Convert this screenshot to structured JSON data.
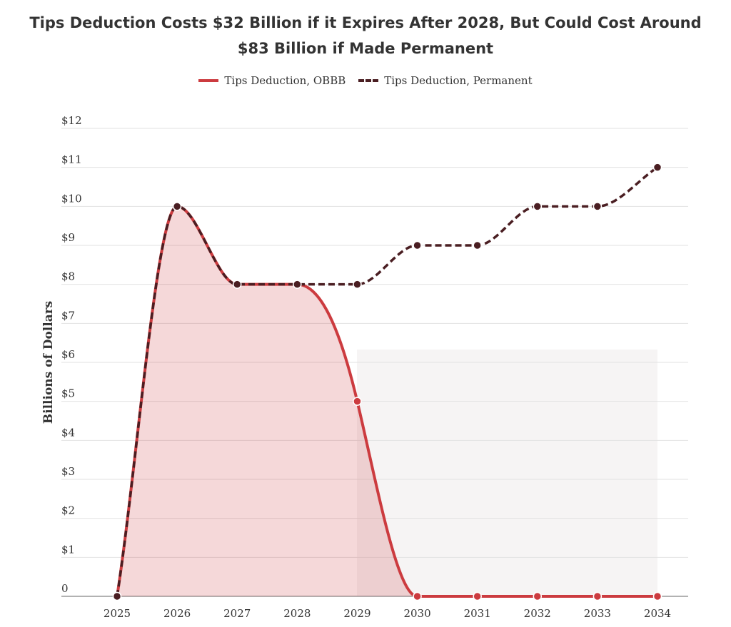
{
  "chart_data": {
    "type": "line",
    "title": "Tips Deduction Costs $32 Billion if it Expires After 2028, But Could Cost Around $83 Billion if Made Permanent",
    "xlabel": "",
    "ylabel": "Billions of Dollars",
    "categories": [
      "2025",
      "2026",
      "2027",
      "2028",
      "2029",
      "2030",
      "2031",
      "2032",
      "2033",
      "2034"
    ],
    "y_ticks": [
      "0",
      "$1",
      "$2",
      "$3",
      "$4",
      "$5",
      "$6",
      "$7",
      "$8",
      "$9",
      "$10",
      "$11",
      "$12"
    ],
    "ylim": [
      0,
      12
    ],
    "grid": true,
    "legend_position": "top",
    "series": [
      {
        "name": "Tips Deduction, OBBB",
        "values": [
          0,
          10,
          8,
          8,
          5,
          0,
          0,
          0,
          0,
          0
        ],
        "color": "#cc3b3f",
        "style": "solid",
        "area": true
      },
      {
        "name": "Tips Deduction, Permanent",
        "values": [
          0,
          10,
          8,
          8,
          8,
          9,
          9,
          10,
          10,
          11
        ],
        "color": "#4a1e22",
        "style": "dashed"
      }
    ]
  }
}
